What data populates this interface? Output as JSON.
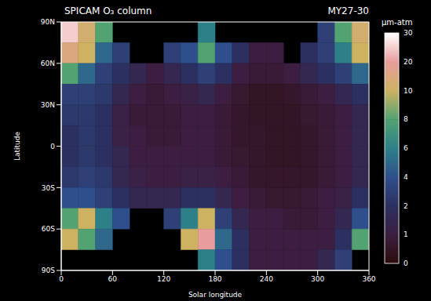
{
  "chart_data": {
    "type": "heatmap",
    "title": "SPICAM O₃ column",
    "subtitle": "MY27-30",
    "xlabel": "Solar longitude",
    "ylabel": "Latitude",
    "xlim": [
      0,
      360
    ],
    "xticks": [
      0,
      60,
      120,
      180,
      240,
      300,
      360
    ],
    "ylim": [
      -90,
      90
    ],
    "yticks": [
      {
        "value": -90,
        "label": "90S"
      },
      {
        "value": -60,
        "label": "60S"
      },
      {
        "value": -30,
        "label": "30S"
      },
      0,
      {
        "value": 30,
        "label": "30N"
      },
      {
        "value": 60,
        "label": "60N"
      },
      {
        "value": 90,
        "label": "90N"
      }
    ],
    "cells": {
      "lon_edges": [
        0,
        20,
        40,
        60,
        80,
        100,
        120,
        140,
        160,
        180,
        200,
        220,
        240,
        260,
        280,
        300,
        320,
        340,
        360
      ],
      "lat_edges": [
        90,
        75,
        60,
        45,
        30,
        15,
        0,
        -15,
        -30,
        -45,
        -60,
        -75,
        -90
      ],
      "values": [
        [
          25,
          12,
          8,
          null,
          null,
          null,
          null,
          null,
          6,
          null,
          null,
          null,
          null,
          null,
          null,
          3,
          8,
          12
        ],
        [
          15,
          10,
          5,
          3,
          null,
          null,
          3,
          4,
          8,
          4,
          2,
          1,
          1,
          null,
          2,
          3,
          6,
          10
        ],
        [
          8,
          5,
          3,
          2,
          1.5,
          1,
          1.5,
          2,
          3,
          2,
          1,
          0.8,
          0.8,
          1,
          1.5,
          2,
          3,
          5
        ],
        [
          3,
          3,
          2.5,
          1.5,
          1,
          0.8,
          1,
          1.2,
          1.5,
          1,
          0.7,
          0.5,
          0.5,
          0.6,
          0.8,
          1,
          1.5,
          2
        ],
        [
          2.5,
          2.5,
          2,
          1.2,
          0.8,
          0.8,
          0.8,
          1,
          1,
          0.8,
          0.6,
          0.5,
          0.5,
          0.5,
          0.7,
          0.8,
          1,
          1.5
        ],
        [
          2,
          2.5,
          2,
          1.2,
          1,
          0.8,
          0.8,
          1,
          1,
          0.8,
          0.6,
          0.6,
          0.5,
          0.5,
          0.6,
          0.8,
          1,
          1.5
        ],
        [
          2,
          2.5,
          2,
          1.5,
          1,
          1,
          1,
          1,
          1,
          0.8,
          0.7,
          0.6,
          0.5,
          0.5,
          0.6,
          0.8,
          1,
          1.5
        ],
        [
          2.5,
          3,
          2.5,
          1.5,
          1.2,
          1,
          1,
          1.2,
          1.2,
          1,
          0.8,
          0.6,
          0.6,
          0.6,
          0.6,
          0.8,
          1,
          1.5
        ],
        [
          4,
          4,
          3,
          2,
          1.5,
          1.5,
          1.5,
          2,
          2,
          1.5,
          1,
          0.8,
          0.7,
          0.7,
          0.8,
          1,
          1.2,
          2
        ],
        [
          8,
          10,
          6,
          4,
          null,
          null,
          3,
          6,
          10,
          3,
          1.5,
          1,
          1,
          0.8,
          0.8,
          1,
          1.5,
          4
        ],
        [
          10,
          8,
          5,
          null,
          null,
          null,
          null,
          10,
          20,
          5,
          2,
          1,
          1,
          1,
          1,
          1,
          2,
          8
        ],
        [
          null,
          null,
          null,
          null,
          null,
          null,
          null,
          null,
          6,
          4,
          2,
          1,
          1,
          1,
          1,
          1.5,
          3,
          null
        ]
      ]
    },
    "colorbar": {
      "label": "μm-atm",
      "range": [
        0,
        30
      ],
      "ticks": [
        0,
        1,
        2,
        4,
        6,
        8,
        10,
        20,
        30
      ],
      "colors": [
        "#2a0c0c",
        "#3c1f40",
        "#2c3060",
        "#2f4f8c",
        "#2e8088",
        "#52a272",
        "#cdb262",
        "#e89c9c",
        "#ffffff"
      ]
    }
  }
}
